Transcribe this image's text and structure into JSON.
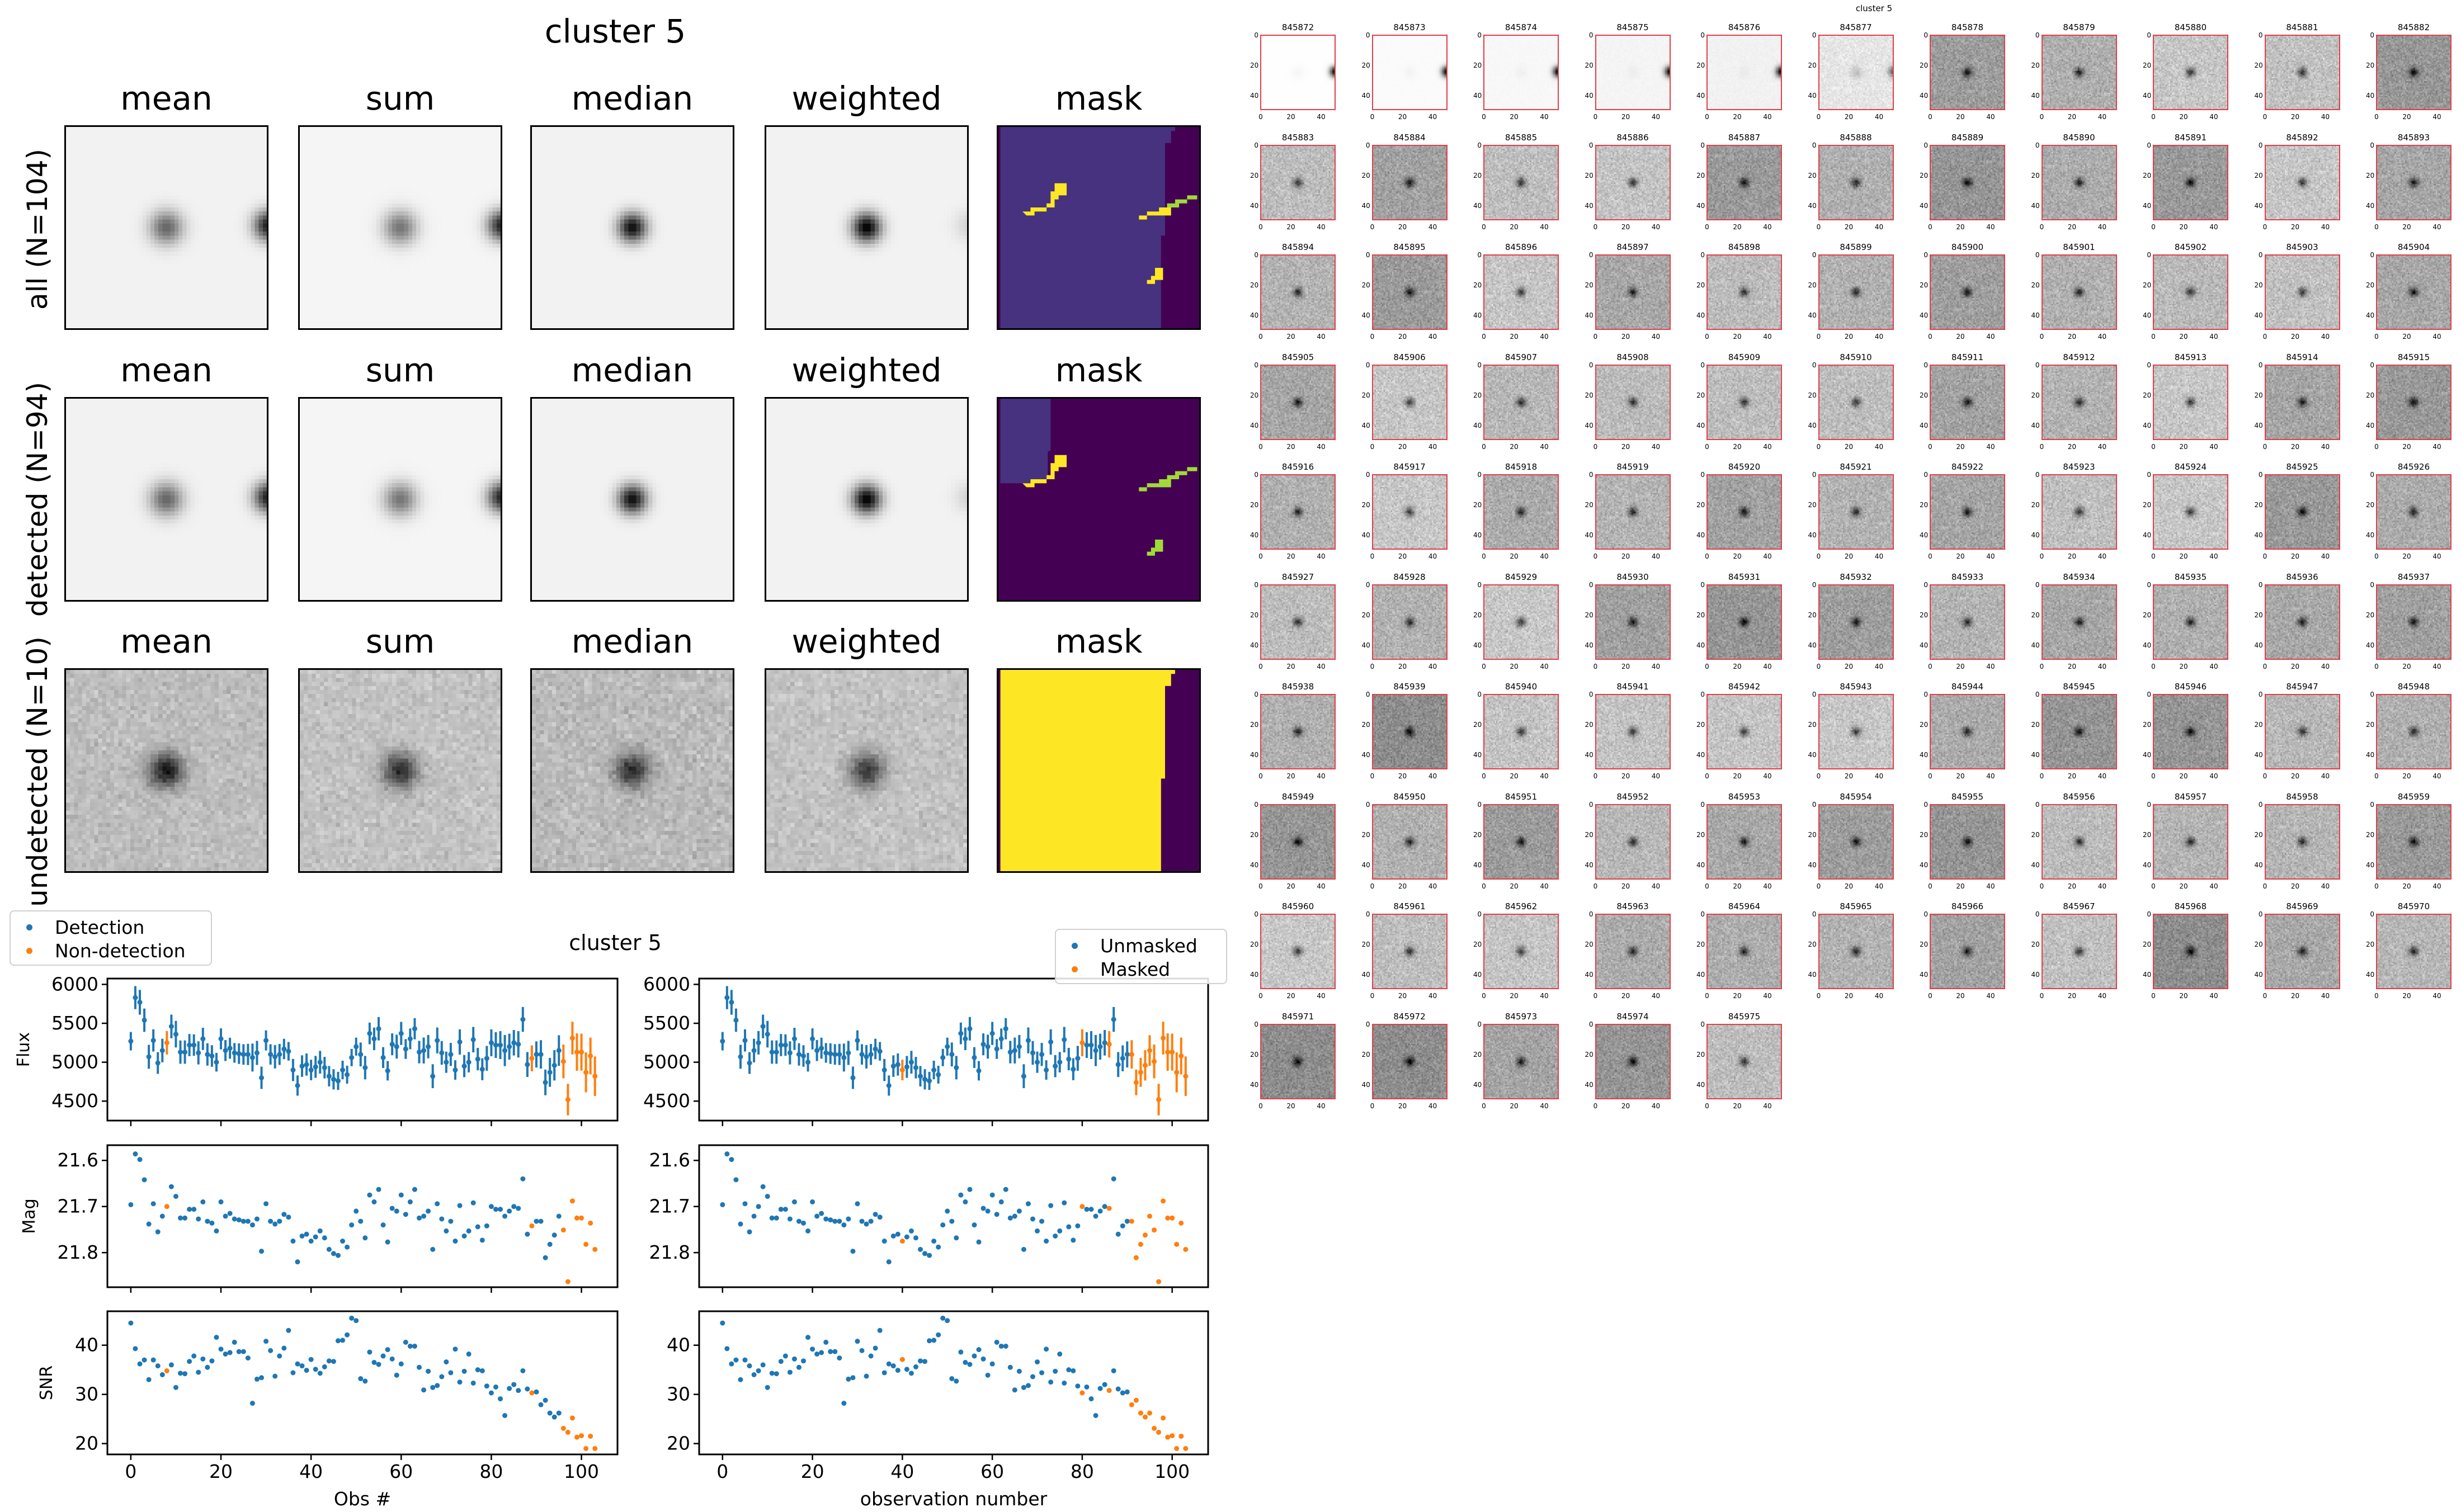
{
  "figure_title": "cluster 5",
  "stack_panels": {
    "column_titles": [
      "mean",
      "sum",
      "median",
      "weighted",
      "mask"
    ],
    "rows": [
      {
        "label": "all (N=104)"
      },
      {
        "label": "detected (N=94)"
      },
      {
        "label": "undetected (N=10)"
      }
    ]
  },
  "lightcurve": {
    "title": "cluster 5",
    "legend_left": [
      {
        "label": "Detection"
      },
      {
        "label": "Non-detection"
      }
    ],
    "legend_right": [
      {
        "label": "Unmasked"
      },
      {
        "label": "Masked"
      }
    ],
    "ylabels": [
      "Flux",
      "Mag",
      "SNR"
    ],
    "xlabel_left": "Obs #",
    "xlabel_right": "observation number"
  },
  "colors": {
    "blue": "#1f77b4",
    "orange": "#ff7f0e",
    "thumb_border": "#e0404a",
    "viridis_dark": "#440154",
    "viridis_indigo": "#46327e",
    "viridis_green": "#a0da39",
    "viridis_yellow": "#fde725"
  },
  "chart_data": [
    {
      "type": "scatter",
      "title": "cluster 5",
      "x": [
        0,
        1,
        2,
        3,
        4,
        5,
        6,
        7,
        8,
        9,
        10,
        11,
        12,
        13,
        14,
        15,
        16,
        17,
        18,
        19,
        20,
        21,
        22,
        23,
        24,
        25,
        26,
        27,
        28,
        29,
        30,
        31,
        32,
        33,
        34,
        35,
        36,
        37,
        38,
        39,
        40,
        41,
        42,
        43,
        44,
        45,
        46,
        47,
        48,
        49,
        50,
        51,
        52,
        53,
        54,
        55,
        56,
        57,
        58,
        59,
        60,
        61,
        62,
        63,
        64,
        65,
        66,
        67,
        68,
        69,
        70,
        71,
        72,
        73,
        74,
        75,
        76,
        77,
        78,
        79,
        80,
        81,
        82,
        83,
        84,
        85,
        86,
        87,
        88,
        89,
        90,
        91,
        92,
        93,
        94,
        95,
        96,
        97,
        98,
        99,
        100,
        101,
        102,
        103
      ],
      "flux": [
        5270,
        5830,
        5770,
        5540,
        5070,
        5280,
        4990,
        5150,
        5250,
        5460,
        5360,
        5130,
        5130,
        5220,
        5220,
        5120,
        5300,
        5100,
        5080,
        5000,
        5300,
        5150,
        5180,
        5120,
        5110,
        5100,
        5100,
        5060,
        5120,
        4800,
        5280,
        5100,
        5070,
        5100,
        5170,
        5140,
        4900,
        4700,
        4950,
        4970,
        4900,
        4940,
        5000,
        4930,
        4820,
        4780,
        4760,
        4900,
        4840,
        5060,
        5200,
        5100,
        4930,
        5370,
        5300,
        5430,
        5060,
        4890,
        5230,
        5200,
        5370,
        5170,
        5300,
        5430,
        5130,
        5150,
        5200,
        4820,
        5280,
        5120,
        5000,
        5100,
        4900,
        5260,
        4950,
        5000,
        5290,
        5040,
        4910,
        5050,
        5250,
        5220,
        5220,
        5150,
        5200,
        5250,
        5230,
        5550,
        4970,
        5050,
        5100,
        5100,
        4740,
        4870,
        4960,
        5150,
        5010,
        4520,
        5310,
        5130,
        5130,
        4870,
        5080,
        4820
      ],
      "mag": [
        21.696,
        21.586,
        21.598,
        21.642,
        21.738,
        21.694,
        21.755,
        21.721,
        21.7,
        21.657,
        21.678,
        21.725,
        21.725,
        21.706,
        21.706,
        21.727,
        21.69,
        21.732,
        21.736,
        21.753,
        21.69,
        21.721,
        21.715,
        21.727,
        21.729,
        21.732,
        21.732,
        21.74,
        21.727,
        21.797,
        21.694,
        21.732,
        21.738,
        21.732,
        21.717,
        21.723,
        21.775,
        21.82,
        21.764,
        21.76,
        21.775,
        21.766,
        21.753,
        21.768,
        21.793,
        21.802,
        21.806,
        21.775,
        21.788,
        21.74,
        21.71,
        21.732,
        21.768,
        21.675,
        21.69,
        21.663,
        21.74,
        21.777,
        21.704,
        21.71,
        21.675,
        21.717,
        21.69,
        21.663,
        21.725,
        21.721,
        21.71,
        21.793,
        21.694,
        21.727,
        21.753,
        21.732,
        21.775,
        21.698,
        21.764,
        21.753,
        21.692,
        21.744,
        21.773,
        21.742,
        21.7,
        21.706,
        21.706,
        21.721,
        21.71,
        21.7,
        21.704,
        21.64,
        21.76,
        21.742,
        21.732,
        21.732,
        21.811,
        21.782,
        21.762,
        21.721,
        21.751,
        21.863,
        21.688,
        21.725,
        21.725,
        21.782,
        21.736,
        21.793
      ],
      "snr": [
        44.5,
        39.3,
        36.2,
        37,
        33,
        37,
        35.8,
        34,
        34.8,
        36,
        31.4,
        34.3,
        34.2,
        36.7,
        37.8,
        34.5,
        37.2,
        35.5,
        36.8,
        41.6,
        39.2,
        38.2,
        38.5,
        40.6,
        38.7,
        38.7,
        37.4,
        28.2,
        33.1,
        33.4,
        40.8,
        38.9,
        33.7,
        37.8,
        39.4,
        43,
        34.4,
        36.2,
        35.8,
        34.9,
        37.1,
        35.1,
        34.3,
        35.6,
        36.8,
        36.7,
        40.9,
        41,
        42.1,
        45.5,
        45,
        33.2,
        32.7,
        38.6,
        36.5,
        36.1,
        37.8,
        39.1,
        37.2,
        33.9,
        36.2,
        40.6,
        39.8,
        39.8,
        35.5,
        30.9,
        34.7,
        31.4,
        31.8,
        33.6,
        36.6,
        34.4,
        39.2,
        32.5,
        34.7,
        38.2,
        32.3,
        35,
        34.8,
        31.7,
        30.3,
        31.5,
        29.1,
        25.7,
        31.2,
        32,
        30.8,
        34.8,
        31.1,
        30.3,
        30.5,
        27.9,
        28.8,
        26.2,
        25.4,
        26.2,
        23.1,
        22.3,
        25.2,
        21.3,
        21.6,
        19,
        21.5,
        19
      ],
      "non_detection_indices": [
        8,
        89,
        96,
        97,
        98,
        99,
        100,
        101,
        102,
        103
      ],
      "masked_indices": [
        40,
        80,
        86,
        91,
        92,
        93,
        94,
        95,
        96,
        97,
        98,
        99,
        100,
        101,
        102,
        103
      ],
      "panels": [
        {
          "key": "flux",
          "ylabel": "Flux",
          "ylim": [
            4250,
            6075
          ],
          "yticks": [
            4500,
            5000,
            5500,
            6000
          ],
          "errorbars": true
        },
        {
          "key": "mag",
          "ylabel": "Mag",
          "ylim": [
            21.875,
            21.567
          ],
          "yticks": [
            21.6,
            21.7,
            21.8
          ],
          "errorbars": false
        },
        {
          "key": "snr",
          "ylabel": "SNR",
          "ylim": [
            17.8,
            46.9
          ],
          "yticks": [
            20,
            30,
            40
          ],
          "errorbars": false
        }
      ],
      "xlim": [
        -5.2,
        108
      ],
      "xticks": [
        0,
        20,
        40,
        60,
        80,
        100
      ],
      "xlabels": [
        "Obs #",
        "observation number"
      ],
      "legend_left": [
        "Detection",
        "Non-detection"
      ],
      "legend_right": [
        "Unmasked",
        "Masked"
      ],
      "legend_placement": [
        "top-left",
        "top-right"
      ]
    }
  ],
  "thumbnails": {
    "title": "cluster 5",
    "tick_labels": [
      "0",
      "20",
      "40"
    ],
    "ids": [
      "845872",
      "845873",
      "845874",
      "845875",
      "845876",
      "845877",
      "845878",
      "845879",
      "845880",
      "845881",
      "845882",
      "845883",
      "845884",
      "845885",
      "845886",
      "845887",
      "845888",
      "845889",
      "845890",
      "845891",
      "845892",
      "845893",
      "845894",
      "845895",
      "845896",
      "845897",
      "845898",
      "845899",
      "845900",
      "845901",
      "845902",
      "845903",
      "845904",
      "845905",
      "845906",
      "845907",
      "845908",
      "845909",
      "845910",
      "845911",
      "845912",
      "845913",
      "845914",
      "845915",
      "845916",
      "845917",
      "845918",
      "845919",
      "845920",
      "845921",
      "845922",
      "845923",
      "845924",
      "845925",
      "845926",
      "845927",
      "845928",
      "845929",
      "845930",
      "845931",
      "845932",
      "845933",
      "845934",
      "845935",
      "845936",
      "845937",
      "845938",
      "845939",
      "845940",
      "845941",
      "845942",
      "845943",
      "845944",
      "845945",
      "845946",
      "845947",
      "845948",
      "845949",
      "845950",
      "845951",
      "845952",
      "845953",
      "845954",
      "845955",
      "845956",
      "845957",
      "845958",
      "845959",
      "845960",
      "845961",
      "845962",
      "845963",
      "845964",
      "845965",
      "845966",
      "845967",
      "845968",
      "845969",
      "845970",
      "845971",
      "845972",
      "845973",
      "845974",
      "845975"
    ]
  }
}
